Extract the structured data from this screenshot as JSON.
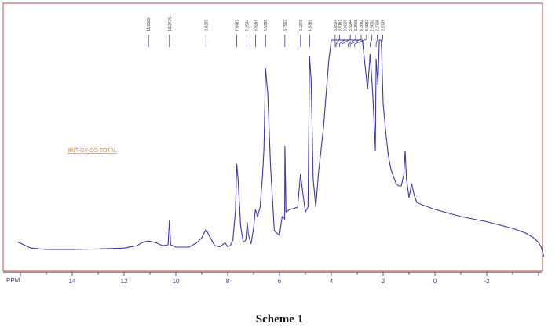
{
  "chart_data": {
    "type": "line",
    "title": "",
    "annotation": "BNT-GV-CO-TOTAL",
    "xlabel": "PPM",
    "x_ticks": [
      "14",
      "12",
      "10",
      "8",
      "6",
      "4",
      "2",
      "0",
      "-2"
    ],
    "x_tick_values": [
      14,
      12,
      10,
      8,
      6,
      4,
      2,
      0,
      -2
    ],
    "xlim": [
      16.2,
      -4.3
    ],
    "x_reversed": true,
    "grid": false,
    "peak_labels": [
      "11.0569",
      "10.2476",
      "8.8395",
      "7.6481",
      "7.2544",
      "6.9264",
      "6.5395",
      "5.7921",
      "5.1876",
      "4.8381",
      "3.8524",
      "3.8161",
      "3.6809",
      "3.5944",
      "3.3508",
      "3.2682",
      "3.0982",
      "2.5033",
      "2.2708",
      "2.0726"
    ],
    "peaks": [
      11.0569,
      10.2476,
      8.8395,
      7.6481,
      7.2544,
      6.9264,
      6.5395,
      5.7921,
      5.1876,
      4.8381,
      3.8524,
      3.8161,
      3.6809,
      3.5944,
      3.3508,
      3.2682,
      3.0982,
      2.5033,
      2.2708,
      2.0726
    ],
    "series": [
      {
        "color": "#3a3a9a",
        "x": [
          16.1,
          15.6,
          15.0,
          14.0,
          13.0,
          12.0,
          11.5,
          11.3,
          11.06,
          10.8,
          10.5,
          10.3,
          10.25,
          10.2,
          10.0,
          9.5,
          9.2,
          9.0,
          8.84,
          8.7,
          8.5,
          8.3,
          8.1,
          8.0,
          7.9,
          7.8,
          7.7,
          7.65,
          7.6,
          7.5,
          7.4,
          7.3,
          7.25,
          7.2,
          7.1,
          7.0,
          6.93,
          6.85,
          6.75,
          6.65,
          6.6,
          6.54,
          6.45,
          6.35,
          6.2,
          6.0,
          5.9,
          5.8,
          5.79,
          5.75,
          5.6,
          5.4,
          5.3,
          5.19,
          5.1,
          5.0,
          4.9,
          4.84,
          4.78,
          4.7,
          4.6,
          4.5,
          4.3,
          4.1,
          4.0,
          3.85,
          3.6,
          3.4,
          3.2,
          3.0,
          2.8,
          2.6,
          2.5,
          2.4,
          2.3,
          2.27,
          2.2,
          2.15,
          2.07,
          2.0,
          1.9,
          1.8,
          1.7,
          1.5,
          1.4,
          1.3,
          1.2,
          1.15,
          1.1,
          1.0,
          0.9,
          0.8,
          0.7,
          0.5,
          0.0,
          -1.0,
          -2.0,
          -3.0,
          -3.5,
          -3.8,
          -4.0,
          -4.1,
          -4.2
        ],
        "y": [
          1.6,
          0.3,
          0.0,
          0.0,
          0.1,
          0.3,
          0.8,
          1.5,
          1.8,
          1.5,
          0.8,
          1.0,
          6.3,
          1.0,
          0.5,
          0.5,
          1.4,
          2.5,
          4.3,
          2.8,
          0.8,
          0.6,
          1.4,
          0.6,
          0.8,
          2.0,
          8.2,
          18.2,
          15.0,
          5.0,
          1.5,
          2.0,
          5.8,
          3.2,
          1.2,
          4.5,
          8.5,
          7.0,
          9.0,
          16.0,
          21.5,
          38.5,
          33.0,
          18.0,
          4.0,
          3.0,
          7.0,
          6.5,
          22.0,
          8.0,
          8.5,
          8.8,
          9.0,
          16.0,
          12.0,
          8.0,
          9.0,
          41.0,
          36.0,
          15.0,
          9.0,
          16.0,
          26.0,
          40.0,
          44.5,
          44.5,
          44.5,
          44.5,
          44.5,
          44.5,
          44.5,
          34.0,
          41.5,
          33.0,
          21.0,
          40.5,
          35.0,
          44.5,
          44.5,
          31.0,
          25.0,
          20.0,
          17.0,
          14.0,
          13.5,
          13.5,
          16.0,
          21.0,
          15.0,
          11.0,
          14.0,
          11.5,
          10.0,
          9.5,
          8.5,
          7.0,
          5.9,
          4.5,
          3.5,
          2.5,
          1.5,
          0.5,
          -1.5
        ]
      }
    ]
  },
  "caption": "Scheme 1"
}
